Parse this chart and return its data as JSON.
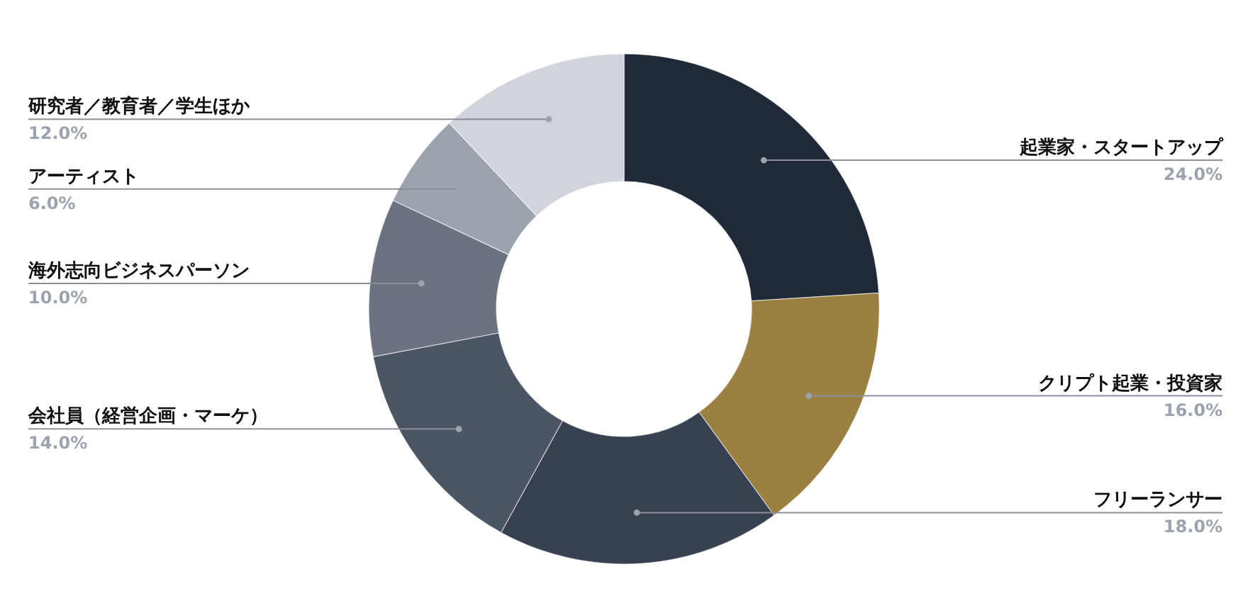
{
  "chart_data": {
    "type": "donut",
    "categories": [
      "起業家・スタートアップ",
      "クリプト起業・投資家",
      "フリーランサー",
      "会社員（経営企画・マーケ）",
      "海外志向ビジネスパーソン",
      "アーティスト",
      "研究者／教育者／学生ほか"
    ],
    "values": [
      24,
      16,
      18,
      14,
      10,
      6,
      12
    ],
    "colors": [
      "#1f2937",
      "#9c8042",
      "#374151",
      "#4b5563",
      "#6b7280",
      "#9ca3af",
      "#d1d5db"
    ],
    "value_labels": [
      "24.0%",
      "16.0%",
      "18.0%",
      "14.0%",
      "10.0%",
      "6.0%",
      "12.0%"
    ]
  }
}
